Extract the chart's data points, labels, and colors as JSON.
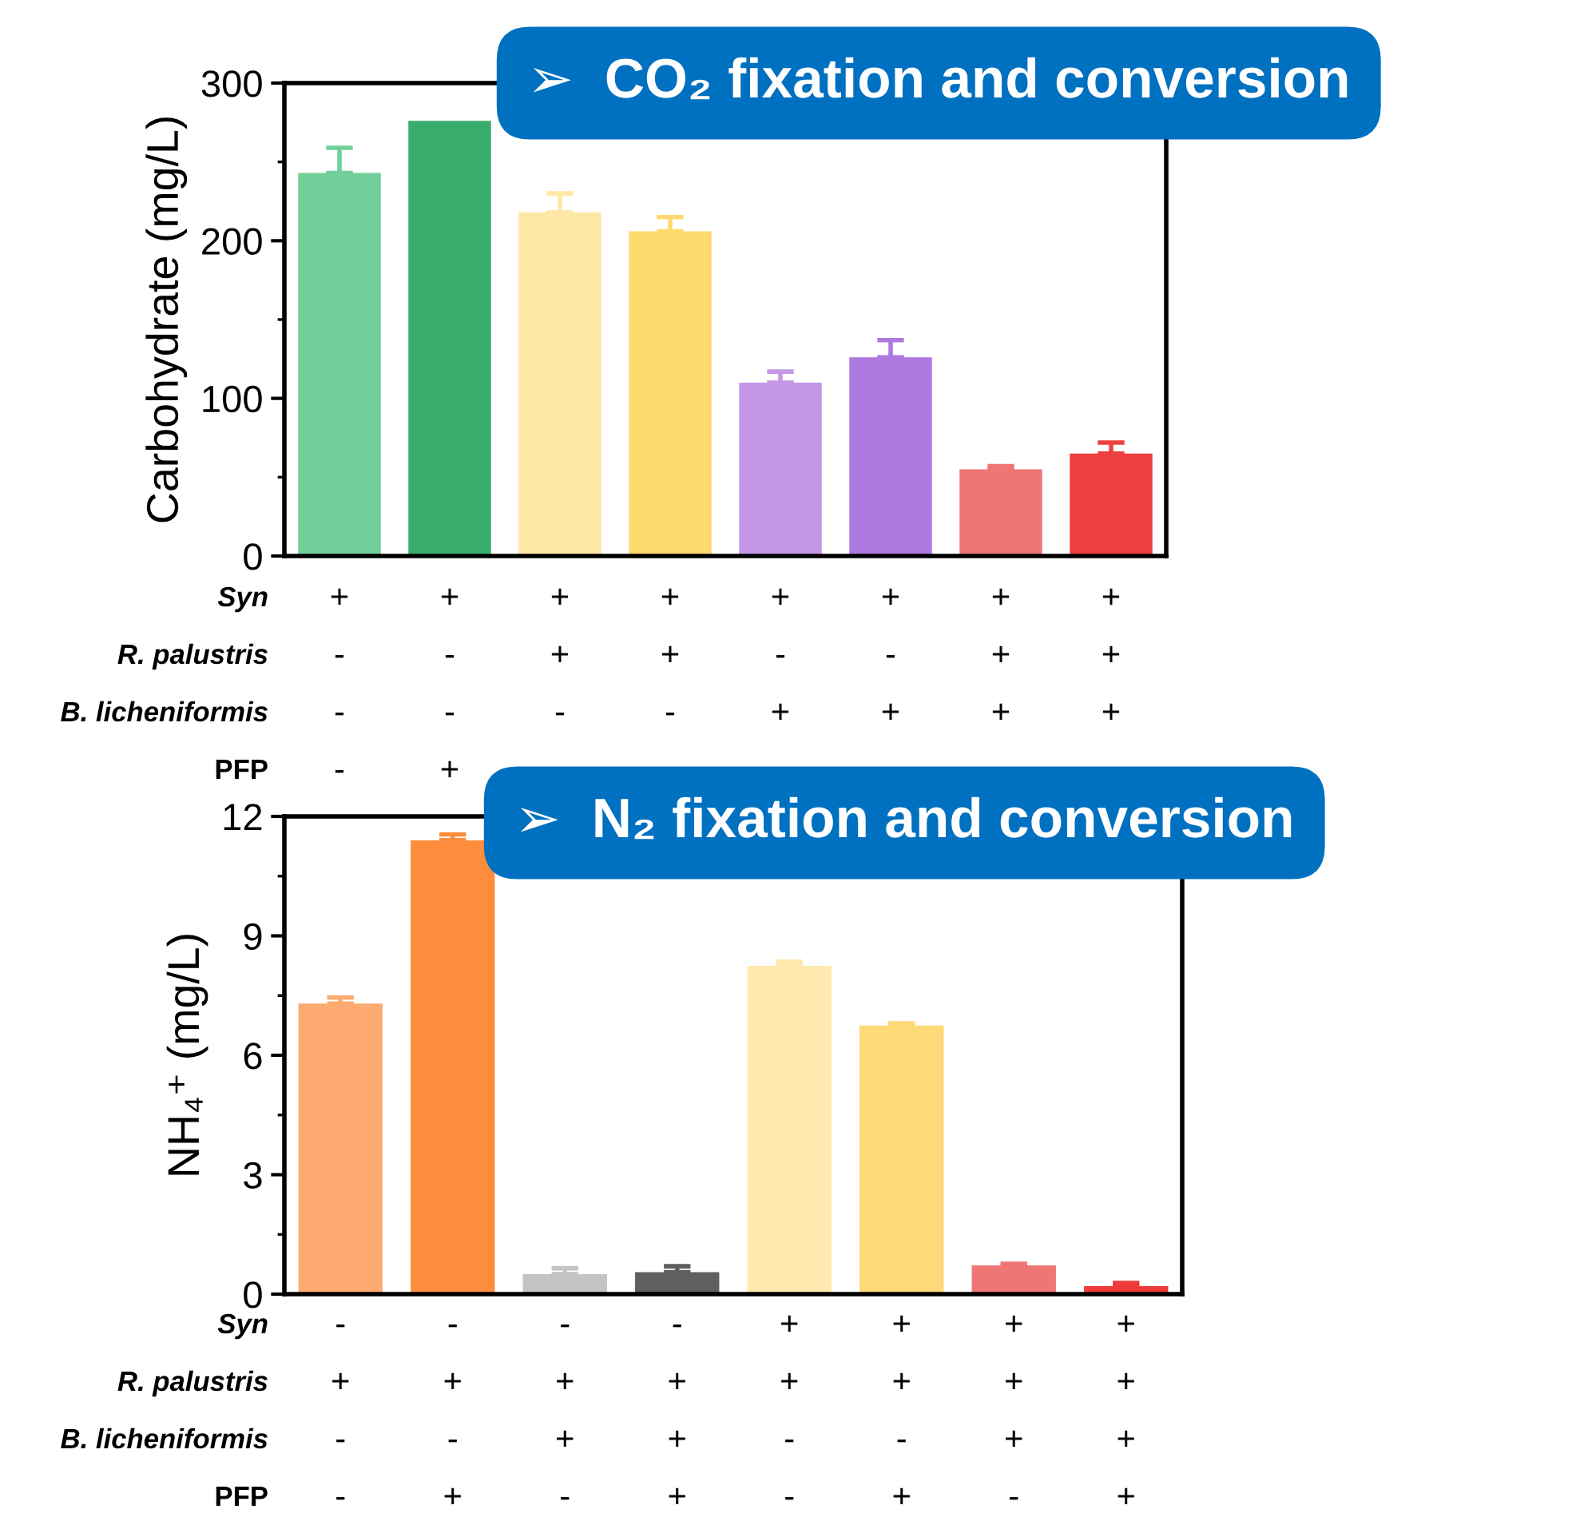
{
  "chart_data": [
    {
      "type": "bar",
      "title": "➢  CO₂ fixation and conversion",
      "ylabel": "Carbohydrate (mg/L)",
      "categories": [
        "+\n-\n-\n-",
        "+\n-\n-\n+",
        "+\n+\n-",
        "+\n+\n-",
        "+\n-\n+",
        "+\n-\n+",
        "+\n+\n+",
        "+\n+\n+"
      ],
      "values": [
        243,
        276,
        218,
        206,
        110,
        126,
        55,
        65
      ],
      "colors": [
        "#71d09a",
        "#3aad6c",
        "#fee8a6",
        "#fed96e",
        "#c697e6",
        "#ae79df",
        "#f07676",
        "#ef4040"
      ],
      "errors": [
        [
          243,
          259
        ],
        null,
        [
          218,
          230
        ],
        [
          206,
          215
        ],
        [
          110,
          117
        ],
        [
          126,
          137
        ],
        [
          55,
          57
        ],
        [
          65,
          72
        ]
      ],
      "ylim": [
        0,
        300
      ],
      "yticks": [
        0,
        100,
        200,
        300
      ],
      "annotations": [
        "Syn",
        "R. palustris",
        "B. licheniformis",
        "PFP"
      ]
    },
    {
      "type": "bar",
      "title": "➢  N₂ fixation and conversion",
      "ylabel": "NH₄⁺ (mg/L)",
      "categories": [
        "-\n+\n-\n-",
        "-\n+\n-\n+",
        "-\n+\n+\n-",
        "-\n+\n+\n+",
        "+\n+\n-\n-",
        "+\n+\n-\n+",
        "+\n+\n+\n-",
        "+\n+\n+\n+"
      ],
      "values": [
        7.3,
        11.4,
        0.5,
        0.55,
        8.25,
        6.75,
        0.72,
        0.2
      ],
      "colors": [
        "#fdab70",
        "#fd8c3c",
        "#c4c4c4",
        "#5f5f5f",
        "#feeaae",
        "#fdd978",
        "#f07676",
        "#ef3a3a"
      ],
      "errors": [
        [
          7.3,
          7.45
        ],
        [
          11.4,
          11.55
        ],
        [
          0.5,
          0.65
        ],
        [
          0.55,
          0.7
        ],
        [
          8.25,
          8.35
        ],
        [
          6.75,
          6.8
        ],
        [
          0.72,
          0.76
        ],
        [
          0.2,
          0.28
        ]
      ],
      "ylim": [
        0,
        12
      ],
      "yticks": [
        0,
        3,
        6,
        9,
        12
      ],
      "annotations": [
        "Syn",
        "R. palustris",
        "B. licheniformis",
        "PFP"
      ]
    }
  ]
}
